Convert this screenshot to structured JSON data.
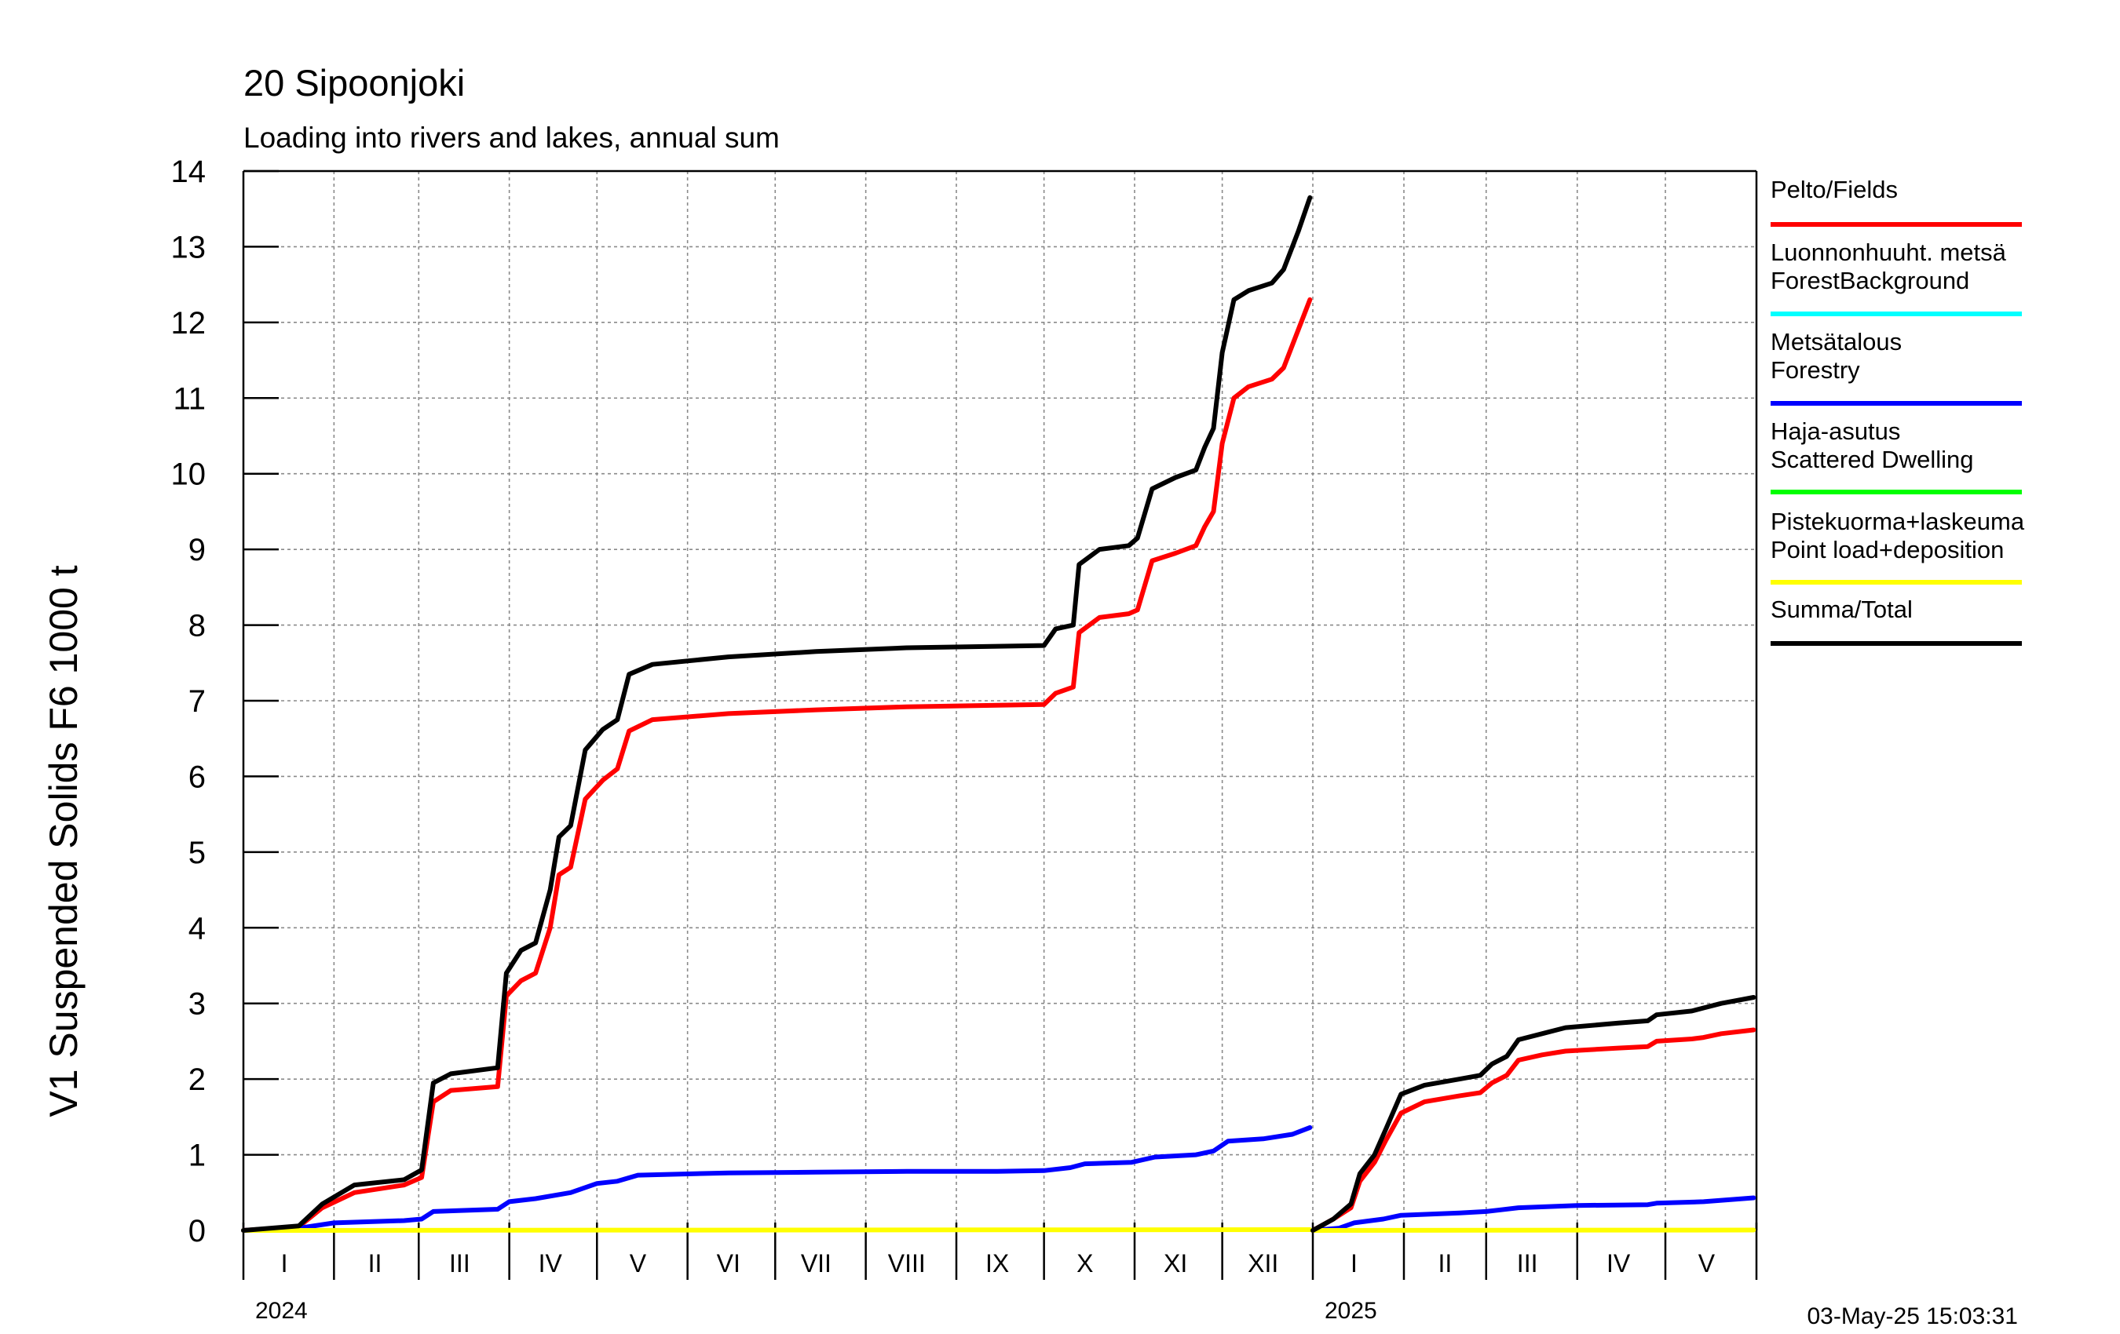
{
  "chart_data": {
    "type": "line",
    "title": "20 Sipoonjoki",
    "subtitle": "Loading into rivers and lakes, annual sum",
    "ylabel": "V1 Suspended Solids F6 1000 t",
    "ylim": [
      0,
      14
    ],
    "y_ticks": [
      0,
      1,
      2,
      3,
      4,
      5,
      6,
      7,
      8,
      9,
      10,
      11,
      12,
      13,
      14
    ],
    "grid": true,
    "legend_position": "right",
    "x_axis": {
      "start": "2024-01-01",
      "end": "2025-05-31",
      "month_labels": [
        {
          "label": "I",
          "date": "2024-01-15"
        },
        {
          "label": "II",
          "date": "2024-02-15"
        },
        {
          "label": "III",
          "date": "2024-03-15"
        },
        {
          "label": "IV",
          "date": "2024-04-15"
        },
        {
          "label": "V",
          "date": "2024-05-15"
        },
        {
          "label": "VI",
          "date": "2024-06-15"
        },
        {
          "label": "VII",
          "date": "2024-07-15"
        },
        {
          "label": "VIII",
          "date": "2024-08-15"
        },
        {
          "label": "IX",
          "date": "2024-09-15"
        },
        {
          "label": "X",
          "date": "2024-10-15"
        },
        {
          "label": "XI",
          "date": "2024-11-15"
        },
        {
          "label": "XII",
          "date": "2024-12-15"
        },
        {
          "label": "I",
          "date": "2025-01-15"
        },
        {
          "label": "II",
          "date": "2025-02-15"
        },
        {
          "label": "III",
          "date": "2025-03-15"
        },
        {
          "label": "IV",
          "date": "2025-04-15"
        },
        {
          "label": "V",
          "date": "2025-05-15"
        }
      ],
      "year_labels": [
        {
          "label": "2024",
          "date": "2024-01-01"
        },
        {
          "label": "2025",
          "date": "2025-01-01"
        }
      ]
    },
    "series": [
      {
        "name": "Pelto/Fields",
        "color": "#ff0000",
        "segments": [
          [
            [
              "2024-01-01",
              0
            ],
            [
              "2024-01-20",
              0.05
            ],
            [
              "2024-01-28",
              0.3
            ],
            [
              "2024-02-08",
              0.5
            ],
            [
              "2024-02-25",
              0.6
            ],
            [
              "2024-03-02",
              0.7
            ],
            [
              "2024-03-06",
              1.7
            ],
            [
              "2024-03-12",
              1.85
            ],
            [
              "2024-03-28",
              1.9
            ],
            [
              "2024-03-31",
              3.1
            ],
            [
              "2024-04-05",
              3.3
            ],
            [
              "2024-04-10",
              3.4
            ],
            [
              "2024-04-15",
              4.0
            ],
            [
              "2024-04-18",
              4.7
            ],
            [
              "2024-04-22",
              4.8
            ],
            [
              "2024-04-27",
              5.7
            ],
            [
              "2024-05-03",
              5.95
            ],
            [
              "2024-05-08",
              6.1
            ],
            [
              "2024-05-12",
              6.6
            ],
            [
              "2024-05-20",
              6.75
            ],
            [
              "2024-06-15",
              6.83
            ],
            [
              "2024-07-15",
              6.88
            ],
            [
              "2024-08-15",
              6.92
            ],
            [
              "2024-09-15",
              6.94
            ],
            [
              "2024-10-01",
              6.95
            ],
            [
              "2024-10-05",
              7.1
            ],
            [
              "2024-10-11",
              7.18
            ],
            [
              "2024-10-13",
              7.9
            ],
            [
              "2024-10-20",
              8.1
            ],
            [
              "2024-10-30",
              8.15
            ],
            [
              "2024-11-02",
              8.2
            ],
            [
              "2024-11-07",
              8.85
            ],
            [
              "2024-11-15",
              8.95
            ],
            [
              "2024-11-22",
              9.05
            ],
            [
              "2024-11-25",
              9.3
            ],
            [
              "2024-11-28",
              9.5
            ],
            [
              "2024-12-01",
              10.4
            ],
            [
              "2024-12-05",
              11.0
            ],
            [
              "2024-12-10",
              11.15
            ],
            [
              "2024-12-18",
              11.25
            ],
            [
              "2024-12-22",
              11.4
            ],
            [
              "2024-12-27",
              11.9
            ],
            [
              "2024-12-31",
              12.3
            ]
          ],
          [
            [
              "2025-01-01",
              0
            ],
            [
              "2025-01-08",
              0.15
            ],
            [
              "2025-01-14",
              0.3
            ],
            [
              "2025-01-17",
              0.65
            ],
            [
              "2025-01-22",
              0.9
            ],
            [
              "2025-01-26",
              1.2
            ],
            [
              "2025-01-31",
              1.55
            ],
            [
              "2025-02-08",
              1.7
            ],
            [
              "2025-02-20",
              1.78
            ],
            [
              "2025-02-27",
              1.82
            ],
            [
              "2025-03-03",
              1.95
            ],
            [
              "2025-03-08",
              2.05
            ],
            [
              "2025-03-12",
              2.25
            ],
            [
              "2025-03-20",
              2.32
            ],
            [
              "2025-03-28",
              2.37
            ],
            [
              "2025-04-15",
              2.41
            ],
            [
              "2025-04-25",
              2.43
            ],
            [
              "2025-04-28",
              2.5
            ],
            [
              "2025-05-10",
              2.53
            ],
            [
              "2025-05-14",
              2.55
            ],
            [
              "2025-05-20",
              2.6
            ],
            [
              "2025-05-31",
              2.65
            ]
          ]
        ]
      },
      {
        "name": "Luonnonhuuht. metsä ForestBackground",
        "color": "#00ffff",
        "segments": []
      },
      {
        "name": "Metsätalous Forestry",
        "color": "#0000ff",
        "segments": [
          [
            [
              "2024-01-01",
              0
            ],
            [
              "2024-01-20",
              0.03
            ],
            [
              "2024-02-01",
              0.1
            ],
            [
              "2024-02-25",
              0.13
            ],
            [
              "2024-03-02",
              0.15
            ],
            [
              "2024-03-06",
              0.25
            ],
            [
              "2024-03-28",
              0.28
            ],
            [
              "2024-04-01",
              0.38
            ],
            [
              "2024-04-10",
              0.42
            ],
            [
              "2024-04-22",
              0.5
            ],
            [
              "2024-05-01",
              0.62
            ],
            [
              "2024-05-08",
              0.65
            ],
            [
              "2024-05-15",
              0.73
            ],
            [
              "2024-06-15",
              0.76
            ],
            [
              "2024-07-15",
              0.77
            ],
            [
              "2024-08-15",
              0.78
            ],
            [
              "2024-09-15",
              0.78
            ],
            [
              "2024-10-01",
              0.79
            ],
            [
              "2024-10-10",
              0.83
            ],
            [
              "2024-10-15",
              0.88
            ],
            [
              "2024-10-31",
              0.9
            ],
            [
              "2024-11-08",
              0.97
            ],
            [
              "2024-11-22",
              1.0
            ],
            [
              "2024-11-28",
              1.05
            ],
            [
              "2024-12-03",
              1.18
            ],
            [
              "2024-12-15",
              1.21
            ],
            [
              "2024-12-25",
              1.27
            ],
            [
              "2024-12-31",
              1.36
            ]
          ],
          [
            [
              "2025-01-01",
              0
            ],
            [
              "2025-01-10",
              0.03
            ],
            [
              "2025-01-15",
              0.1
            ],
            [
              "2025-01-25",
              0.15
            ],
            [
              "2025-01-31",
              0.2
            ],
            [
              "2025-02-20",
              0.23
            ],
            [
              "2025-03-01",
              0.25
            ],
            [
              "2025-03-12",
              0.3
            ],
            [
              "2025-04-01",
              0.33
            ],
            [
              "2025-04-25",
              0.34
            ],
            [
              "2025-04-28",
              0.36
            ],
            [
              "2025-05-14",
              0.38
            ],
            [
              "2025-05-31",
              0.43
            ]
          ]
        ]
      },
      {
        "name": "Haja-asutus Scattered Dwelling",
        "color": "#00ff00",
        "segments": []
      },
      {
        "name": "Pistekuorma+laskeuma Point load+deposition",
        "color": "#ffff00",
        "segments": [
          [
            [
              "2024-01-01",
              0
            ],
            [
              "2024-12-31",
              0.01
            ]
          ],
          [
            [
              "2025-01-01",
              0
            ],
            [
              "2025-05-31",
              0.005
            ]
          ]
        ]
      },
      {
        "name": "Summa/Total",
        "color": "#000000",
        "segments": [
          [
            [
              "2024-01-01",
              0
            ],
            [
              "2024-01-20",
              0.06
            ],
            [
              "2024-01-28",
              0.35
            ],
            [
              "2024-02-08",
              0.6
            ],
            [
              "2024-02-25",
              0.67
            ],
            [
              "2024-03-02",
              0.8
            ],
            [
              "2024-03-06",
              1.95
            ],
            [
              "2024-03-12",
              2.07
            ],
            [
              "2024-03-28",
              2.15
            ],
            [
              "2024-03-31",
              3.4
            ],
            [
              "2024-04-05",
              3.7
            ],
            [
              "2024-04-10",
              3.8
            ],
            [
              "2024-04-15",
              4.5
            ],
            [
              "2024-04-18",
              5.2
            ],
            [
              "2024-04-22",
              5.35
            ],
            [
              "2024-04-27",
              6.35
            ],
            [
              "2024-05-03",
              6.62
            ],
            [
              "2024-05-08",
              6.75
            ],
            [
              "2024-05-12",
              7.35
            ],
            [
              "2024-05-20",
              7.48
            ],
            [
              "2024-06-15",
              7.58
            ],
            [
              "2024-07-15",
              7.65
            ],
            [
              "2024-08-15",
              7.7
            ],
            [
              "2024-09-15",
              7.72
            ],
            [
              "2024-10-01",
              7.73
            ],
            [
              "2024-10-05",
              7.95
            ],
            [
              "2024-10-11",
              8.0
            ],
            [
              "2024-10-13",
              8.8
            ],
            [
              "2024-10-20",
              9.0
            ],
            [
              "2024-10-30",
              9.05
            ],
            [
              "2024-11-02",
              9.15
            ],
            [
              "2024-11-07",
              9.8
            ],
            [
              "2024-11-15",
              9.95
            ],
            [
              "2024-11-22",
              10.05
            ],
            [
              "2024-11-25",
              10.35
            ],
            [
              "2024-11-28",
              10.6
            ],
            [
              "2024-12-01",
              11.6
            ],
            [
              "2024-12-05",
              12.3
            ],
            [
              "2024-12-10",
              12.42
            ],
            [
              "2024-12-18",
              12.52
            ],
            [
              "2024-12-22",
              12.7
            ],
            [
              "2024-12-27",
              13.2
            ],
            [
              "2024-12-31",
              13.65
            ]
          ],
          [
            [
              "2025-01-01",
              0
            ],
            [
              "2025-01-08",
              0.15
            ],
            [
              "2025-01-14",
              0.35
            ],
            [
              "2025-01-17",
              0.75
            ],
            [
              "2025-01-22",
              1.0
            ],
            [
              "2025-01-26",
              1.35
            ],
            [
              "2025-01-31",
              1.8
            ],
            [
              "2025-02-08",
              1.92
            ],
            [
              "2025-02-20",
              2.0
            ],
            [
              "2025-02-27",
              2.05
            ],
            [
              "2025-03-03",
              2.2
            ],
            [
              "2025-03-08",
              2.3
            ],
            [
              "2025-03-12",
              2.52
            ],
            [
              "2025-03-20",
              2.6
            ],
            [
              "2025-03-28",
              2.68
            ],
            [
              "2025-04-15",
              2.74
            ],
            [
              "2025-04-25",
              2.77
            ],
            [
              "2025-04-28",
              2.85
            ],
            [
              "2025-05-10",
              2.9
            ],
            [
              "2025-05-14",
              2.94
            ],
            [
              "2025-05-20",
              3.0
            ],
            [
              "2025-05-31",
              3.08
            ]
          ]
        ]
      }
    ]
  },
  "timestamp": "03-May-25 15:03:31"
}
